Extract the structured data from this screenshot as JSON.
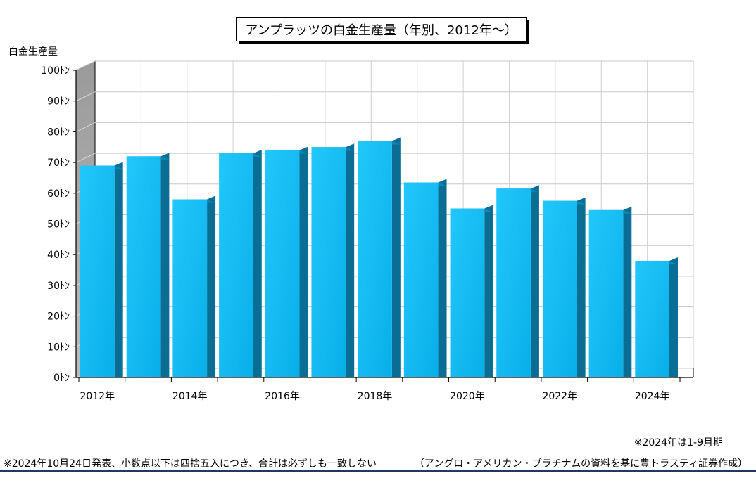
{
  "chart_data": {
    "type": "bar",
    "title": "アンプラッツの白金生産量（年別、2012年～）",
    "ylabel": "白金生産量",
    "xlabel": "",
    "categories": [
      "2012",
      "2013",
      "2014",
      "2015",
      "2016",
      "2017",
      "2018",
      "2019",
      "2020",
      "2021",
      "2022",
      "2023",
      "2024"
    ],
    "values": [
      69,
      72,
      58,
      73,
      74,
      75,
      77,
      63.5,
      55,
      61.5,
      57.5,
      54.5,
      38
    ],
    "ylim": [
      0,
      100
    ],
    "y_ticks": [
      "0ﾄﾝ",
      "10ﾄﾝ",
      "20ﾄﾝ",
      "30ﾄﾝ",
      "40ﾄﾝ",
      "50ﾄﾝ",
      "60ﾄﾝ",
      "70ﾄﾝ",
      "80ﾄﾝ",
      "90ﾄﾝ",
      "100ﾄﾝ"
    ],
    "x_tick_labels": [
      "2012年",
      "2014年",
      "2016年",
      "2018年",
      "2020年",
      "2022年",
      "2024年"
    ],
    "grid": true,
    "bar_color": "#12b4ef"
  },
  "notes": {
    "period": "※2024年は1-9月期",
    "disclaimer": "※2024年10月24日発表、小数点以下は四捨五入につき、合計は必ずしも一致しない",
    "source": "（アングロ・アメリカン・プラチナムの資料を基に豊トラスティ証券作成）"
  }
}
